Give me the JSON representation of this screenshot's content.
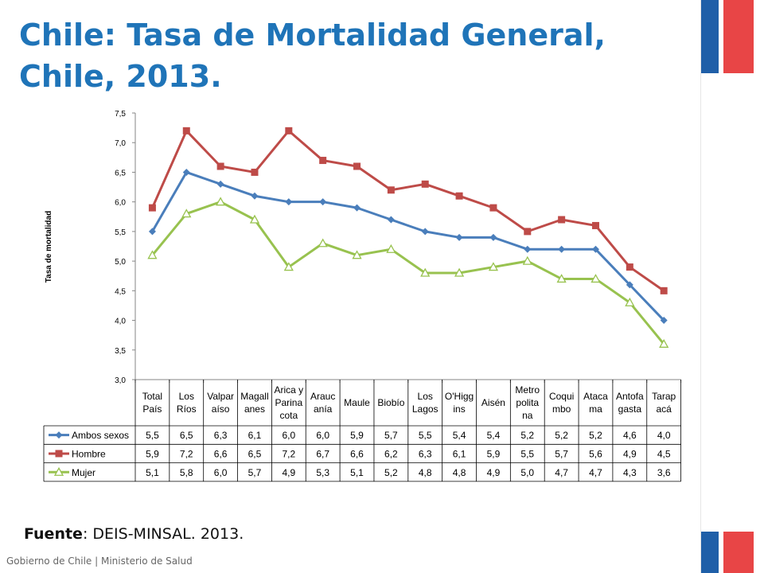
{
  "slide": {
    "title": "Chile: Tasa de Mortalidad General, Chile, 2013.",
    "source_label": "Fuente",
    "source_text": ": DEIS-MINSAL. 2013.",
    "footer": "Gobierno de Chile | Ministerio de Salud"
  },
  "chart_data": {
    "type": "line",
    "ylabel": "Tasa de mortalidad",
    "ylim": [
      3.0,
      7.5
    ],
    "yticks": [
      "7,5",
      "7,0",
      "6,5",
      "6,0",
      "5,5",
      "5,0",
      "4,5",
      "4,0",
      "3,5",
      "3,0"
    ],
    "categories": [
      [
        "Total",
        "País"
      ],
      [
        "Los",
        "Ríos"
      ],
      [
        "Valpar",
        "aíso"
      ],
      [
        "Magall",
        "anes"
      ],
      [
        "Arica y",
        "Parina",
        "cota"
      ],
      [
        "Arauc",
        "anía"
      ],
      [
        "Maule"
      ],
      [
        "Biobío"
      ],
      [
        "Los",
        "Lagos"
      ],
      [
        "O'Higg",
        "ins"
      ],
      [
        "Aisén"
      ],
      [
        "Metro",
        "polita",
        "na"
      ],
      [
        "Coqui",
        "mbo"
      ],
      [
        "Ataca",
        "ma"
      ],
      [
        "Antofa",
        "gasta"
      ],
      [
        "Tarap",
        "acá"
      ]
    ],
    "series": [
      {
        "name": "Ambos sexos",
        "color": "#4a7ebb",
        "marker": "diamond",
        "values": [
          5.5,
          6.5,
          6.3,
          6.1,
          6.0,
          6.0,
          5.9,
          5.7,
          5.5,
          5.4,
          5.4,
          5.2,
          5.2,
          5.2,
          4.6,
          4.0
        ],
        "labels": [
          "5,5",
          "6,5",
          "6,3",
          "6,1",
          "6,0",
          "6,0",
          "5,9",
          "5,7",
          "5,5",
          "5,4",
          "5,4",
          "5,2",
          "5,2",
          "5,2",
          "4,6",
          "4,0"
        ]
      },
      {
        "name": "Hombre",
        "color": "#be4b48",
        "marker": "square",
        "values": [
          5.9,
          7.2,
          6.6,
          6.5,
          7.2,
          6.7,
          6.6,
          6.2,
          6.3,
          6.1,
          5.9,
          5.5,
          5.7,
          5.6,
          4.9,
          4.5
        ],
        "labels": [
          "5,9",
          "7,2",
          "6,6",
          "6,5",
          "7,2",
          "6,7",
          "6,6",
          "6,2",
          "6,3",
          "6,1",
          "5,9",
          "5,5",
          "5,7",
          "5,6",
          "4,9",
          "4,5"
        ]
      },
      {
        "name": "Mujer",
        "color": "#98c24f",
        "marker": "triangle",
        "values": [
          5.1,
          5.8,
          6.0,
          5.7,
          4.9,
          5.3,
          5.1,
          5.2,
          4.8,
          4.8,
          4.9,
          5.0,
          4.7,
          4.7,
          4.3,
          3.6
        ],
        "labels": [
          "5,1",
          "5,8",
          "6,0",
          "5,7",
          "4,9",
          "5,3",
          "5,1",
          "5,2",
          "4,8",
          "4,8",
          "4,9",
          "5,0",
          "4,7",
          "4,7",
          "4,3",
          "3,6"
        ]
      }
    ],
    "grid": false,
    "legend": "data-table"
  }
}
